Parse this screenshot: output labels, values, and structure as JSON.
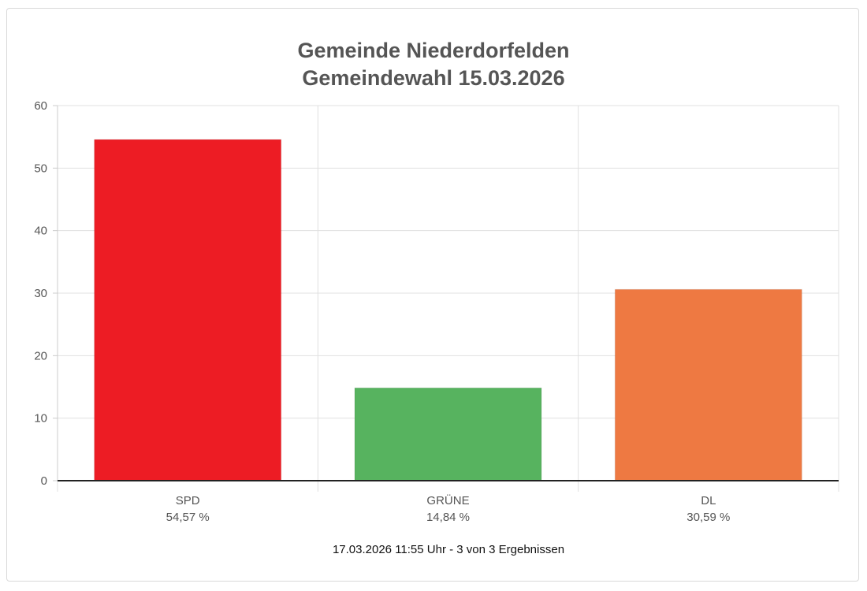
{
  "chart_data": {
    "type": "bar",
    "title": "Gemeinde Niederdorfelden",
    "subtitle": "Gemeindewahl 15.03.2026",
    "categories": [
      "SPD",
      "GRÜNE",
      "DL"
    ],
    "value_labels": [
      "54,57 %",
      "14,84 %",
      "30,59 %"
    ],
    "values": [
      54.57,
      14.84,
      30.59
    ],
    "colors": [
      "#ed1c24",
      "#57b35f",
      "#ee7942"
    ],
    "ylim": [
      0,
      60
    ],
    "yticks": [
      0,
      10,
      20,
      30,
      40,
      50,
      60
    ],
    "grid": true,
    "xlabel": "",
    "ylabel": ""
  },
  "footer": {
    "status": "17.03.2026 11:55 Uhr - 3 von 3 Ergebnissen"
  }
}
